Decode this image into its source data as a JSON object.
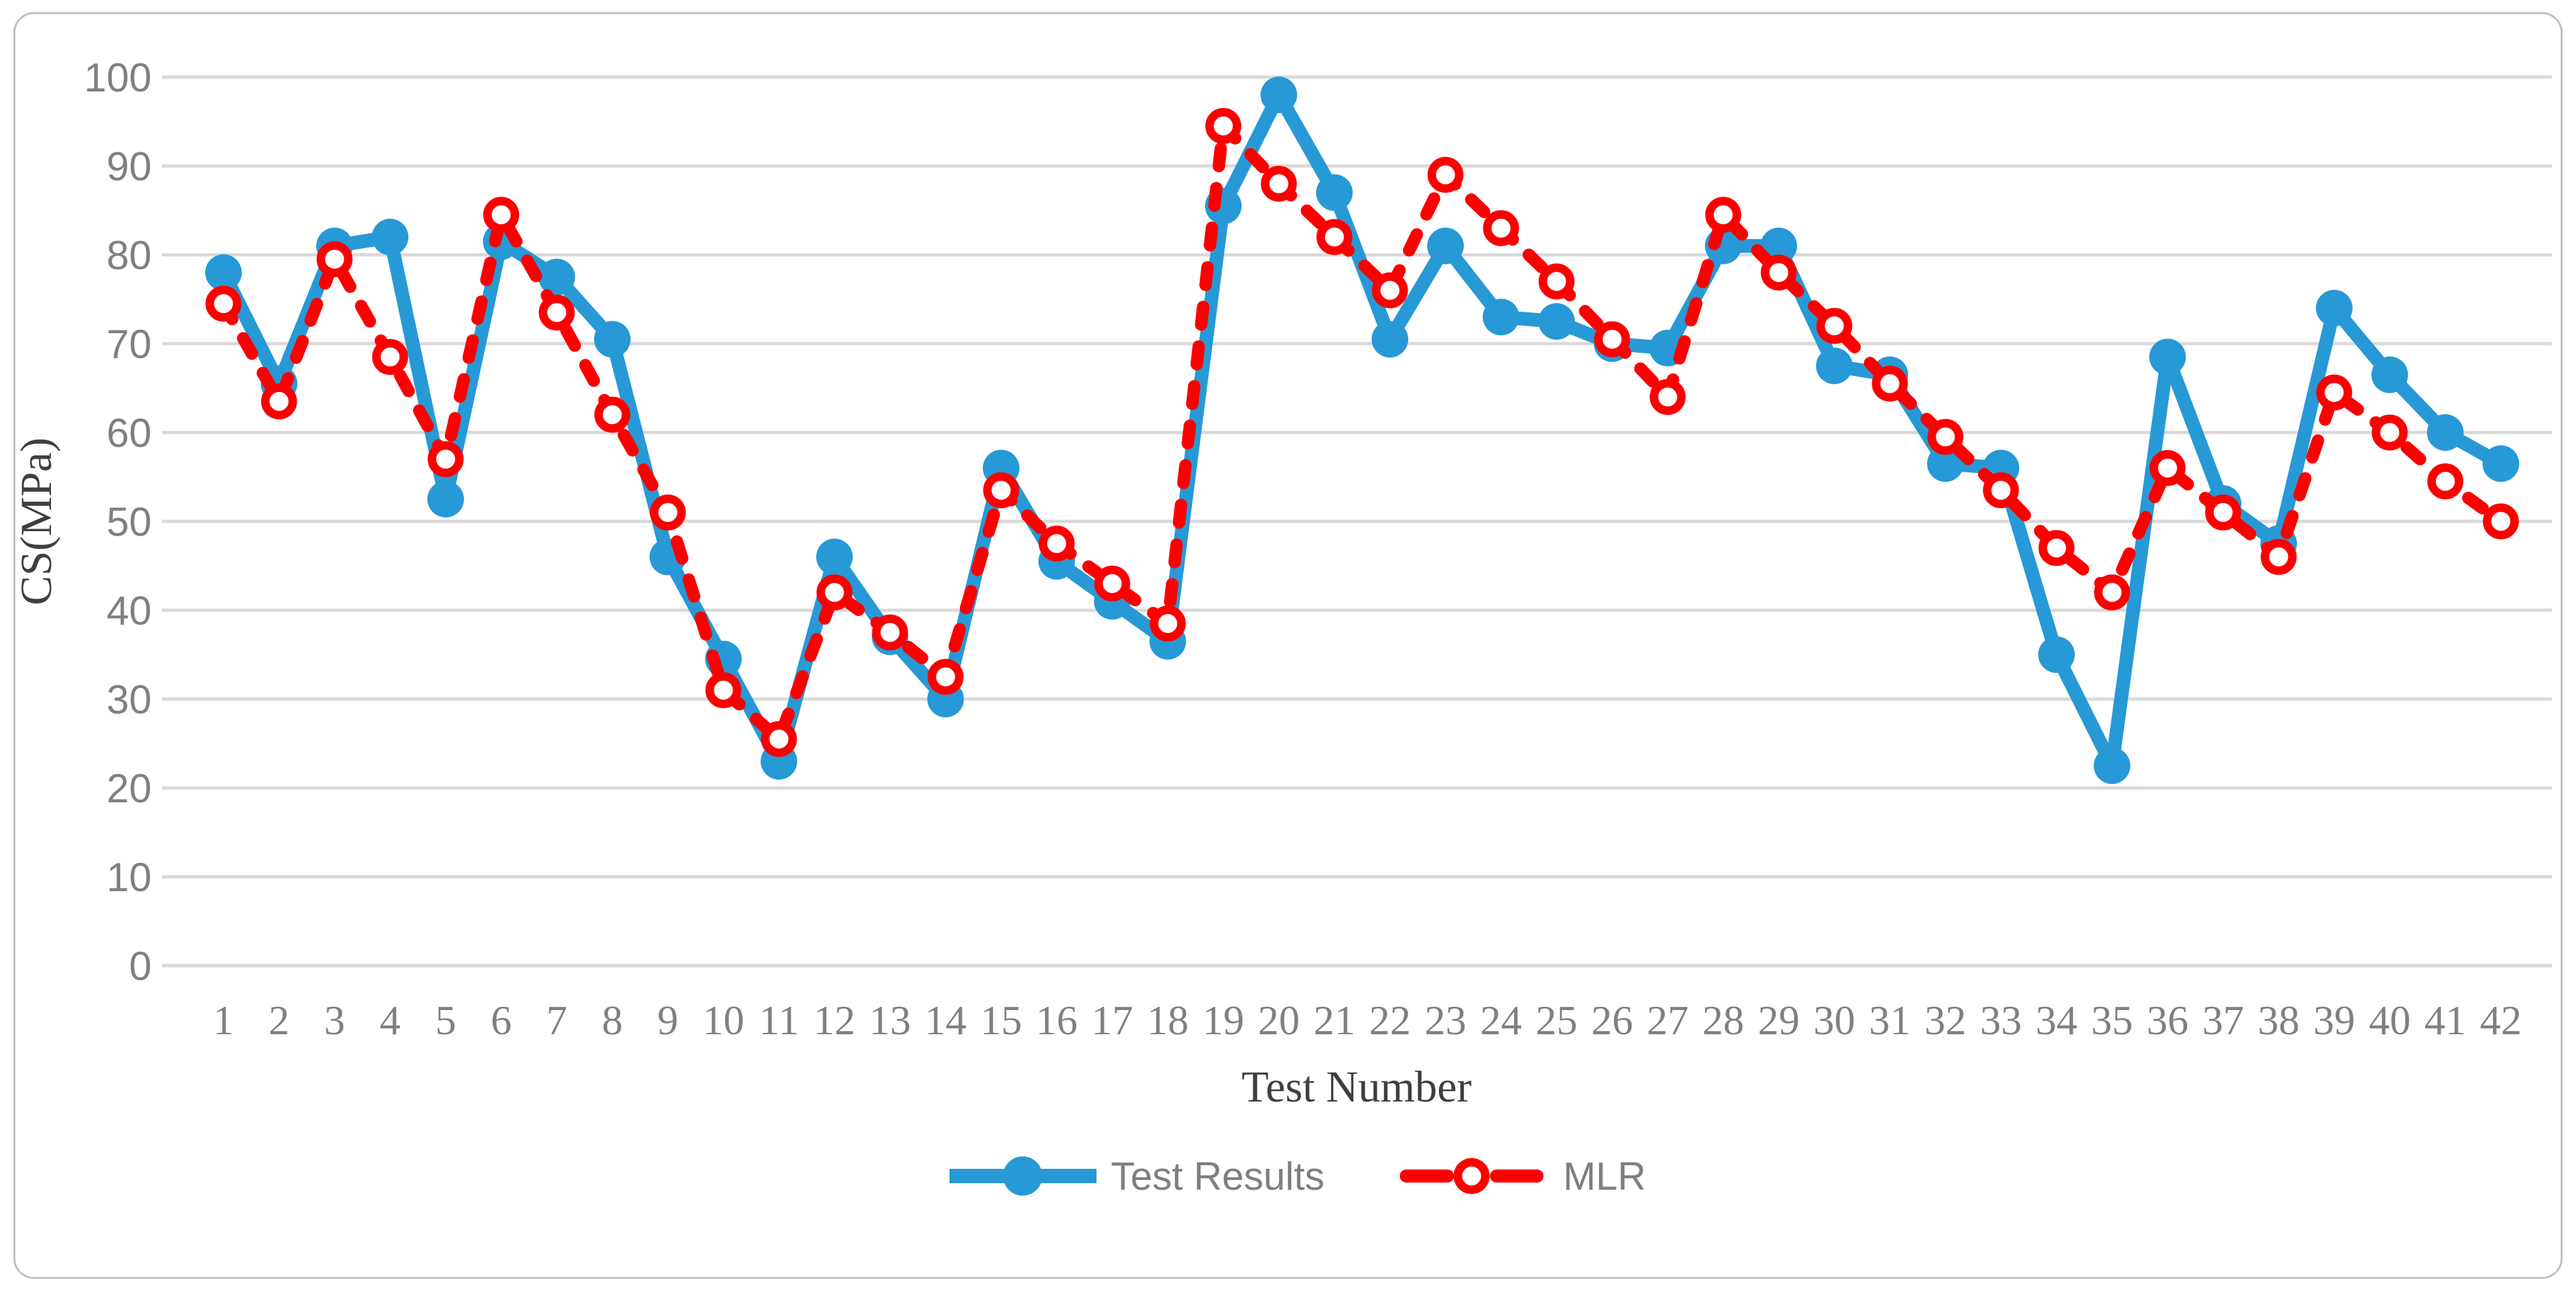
{
  "figure": {
    "border_color": "#BFBFBF",
    "background": "#FFFFFF"
  },
  "axes": {
    "x_title": "Test Number",
    "y_title": "CS(MPa)",
    "tick_color": "#808080",
    "title_color": "#3F3F3F",
    "gridline_color": "#D9D9D9"
  },
  "legend": {
    "items": [
      {
        "label": "Test Results",
        "color": "#2799D6",
        "marker": "filled-circle",
        "line": "solid"
      },
      {
        "label": "MLR",
        "color": "#FC0000",
        "marker": "open-circle",
        "line": "dashed"
      }
    ]
  },
  "chart_data": {
    "type": "line",
    "title": "",
    "xlabel": "Test Number",
    "ylabel": "CS(MPa)",
    "ylim": [
      0,
      100
    ],
    "ytick_step": 10,
    "grid": true,
    "legend_position": "bottom",
    "categories": [
      "1",
      "2",
      "3",
      "4",
      "5",
      "6",
      "7",
      "8",
      "9",
      "10",
      "11",
      "12",
      "13",
      "14",
      "15",
      "16",
      "17",
      "18",
      "19",
      "20",
      "21",
      "22",
      "23",
      "24",
      "25",
      "26",
      "27",
      "28",
      "29",
      "30",
      "31",
      "32",
      "33",
      "34",
      "35",
      "36",
      "37",
      "38",
      "39",
      "40",
      "41",
      "42"
    ],
    "series": [
      {
        "name": "Test Results",
        "color": "#2799D6",
        "line_style": "solid",
        "marker": "filled-circle",
        "values": [
          78,
          65.5,
          81,
          82,
          52.5,
          81.5,
          77.5,
          70.5,
          46,
          34.5,
          23,
          46,
          37,
          30,
          56,
          45.5,
          41,
          36.5,
          85.5,
          98,
          87,
          70.5,
          81,
          73,
          72.5,
          70,
          69.5,
          81,
          81,
          67.5,
          66.5,
          56.5,
          56,
          35,
          22.5,
          68.5,
          52,
          47.5,
          74,
          66.5,
          60,
          56.5
        ]
      },
      {
        "name": "MLR",
        "color": "#FC0000",
        "line_style": "dashed",
        "marker": "open-circle",
        "values": [
          74.5,
          63.5,
          79.5,
          68.5,
          57,
          84.5,
          73.5,
          62,
          51,
          31,
          25.5,
          42,
          37.5,
          32.5,
          53.5,
          47.5,
          43,
          38.5,
          94.5,
          88,
          82,
          76,
          89,
          83,
          77,
          70.5,
          64,
          84.5,
          78,
          72,
          65.5,
          59.5,
          53.5,
          47,
          42,
          56,
          51,
          46,
          64.5,
          60,
          54.5,
          50
        ]
      }
    ]
  }
}
